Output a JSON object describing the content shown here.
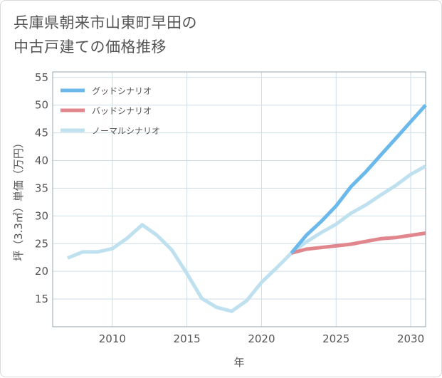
{
  "header": {
    "title_line1": "兵庫県朝来市山東町早田の",
    "title_line2": "中古戸建ての価格推移"
  },
  "colors": {
    "good": "#6bb8ea",
    "bad": "#e0868c",
    "normal": "#bfe0ee",
    "grid": "#cfdde6",
    "plot_border": "#9aa7b0"
  },
  "chart_data": {
    "type": "line",
    "title": "兵庫県朝来市山東町早田の中古戸建ての価格推移",
    "xlabel": "年",
    "ylabel": "坪（3.3㎡）単価（万円）",
    "xlim": [
      2006,
      2031
    ],
    "ylim": [
      10,
      56
    ],
    "x_ticks": [
      2010,
      2015,
      2020,
      2025,
      2030
    ],
    "y_ticks": [
      15,
      20,
      25,
      30,
      35,
      40,
      45,
      50,
      55
    ],
    "x_tick_labels": [
      "2010",
      "2015",
      "2020",
      "2025",
      "2030"
    ],
    "y_tick_labels": [
      "15",
      "20",
      "25",
      "30",
      "35",
      "40",
      "45",
      "50",
      "55"
    ],
    "grid": true,
    "legend_position": "top-left",
    "series": [
      {
        "name": "グッドシナリオ",
        "color_key": "good",
        "x": [
          2022,
          2023,
          2024,
          2025,
          2026,
          2027,
          2028,
          2029,
          2030,
          2031
        ],
        "y": [
          23.3,
          26.5,
          29.0,
          31.8,
          35.3,
          38.0,
          41.0,
          44.0,
          47.0,
          50.0
        ]
      },
      {
        "name": "バッドシナリオ",
        "color_key": "bad",
        "x": [
          2022,
          2023,
          2024,
          2025,
          2026,
          2027,
          2028,
          2029,
          2030,
          2031
        ],
        "y": [
          23.3,
          24.0,
          24.3,
          24.6,
          24.9,
          25.4,
          25.9,
          26.1,
          26.5,
          26.9
        ]
      },
      {
        "name": "ノーマルシナリオ",
        "color_key": "normal",
        "x": [
          2007,
          2008,
          2009,
          2010,
          2011,
          2012,
          2013,
          2014,
          2015,
          2016,
          2017,
          2018,
          2019,
          2020,
          2021,
          2022,
          2023,
          2024,
          2025,
          2026,
          2027,
          2028,
          2029,
          2030,
          2031
        ],
        "y": [
          22.4,
          23.5,
          23.5,
          24.1,
          26.0,
          28.4,
          26.5,
          23.8,
          19.6,
          15.1,
          13.5,
          12.8,
          14.7,
          18.0,
          20.6,
          23.3,
          25.3,
          27.0,
          28.5,
          30.5,
          32.0,
          33.8,
          35.5,
          37.5,
          39.0
        ]
      }
    ]
  }
}
